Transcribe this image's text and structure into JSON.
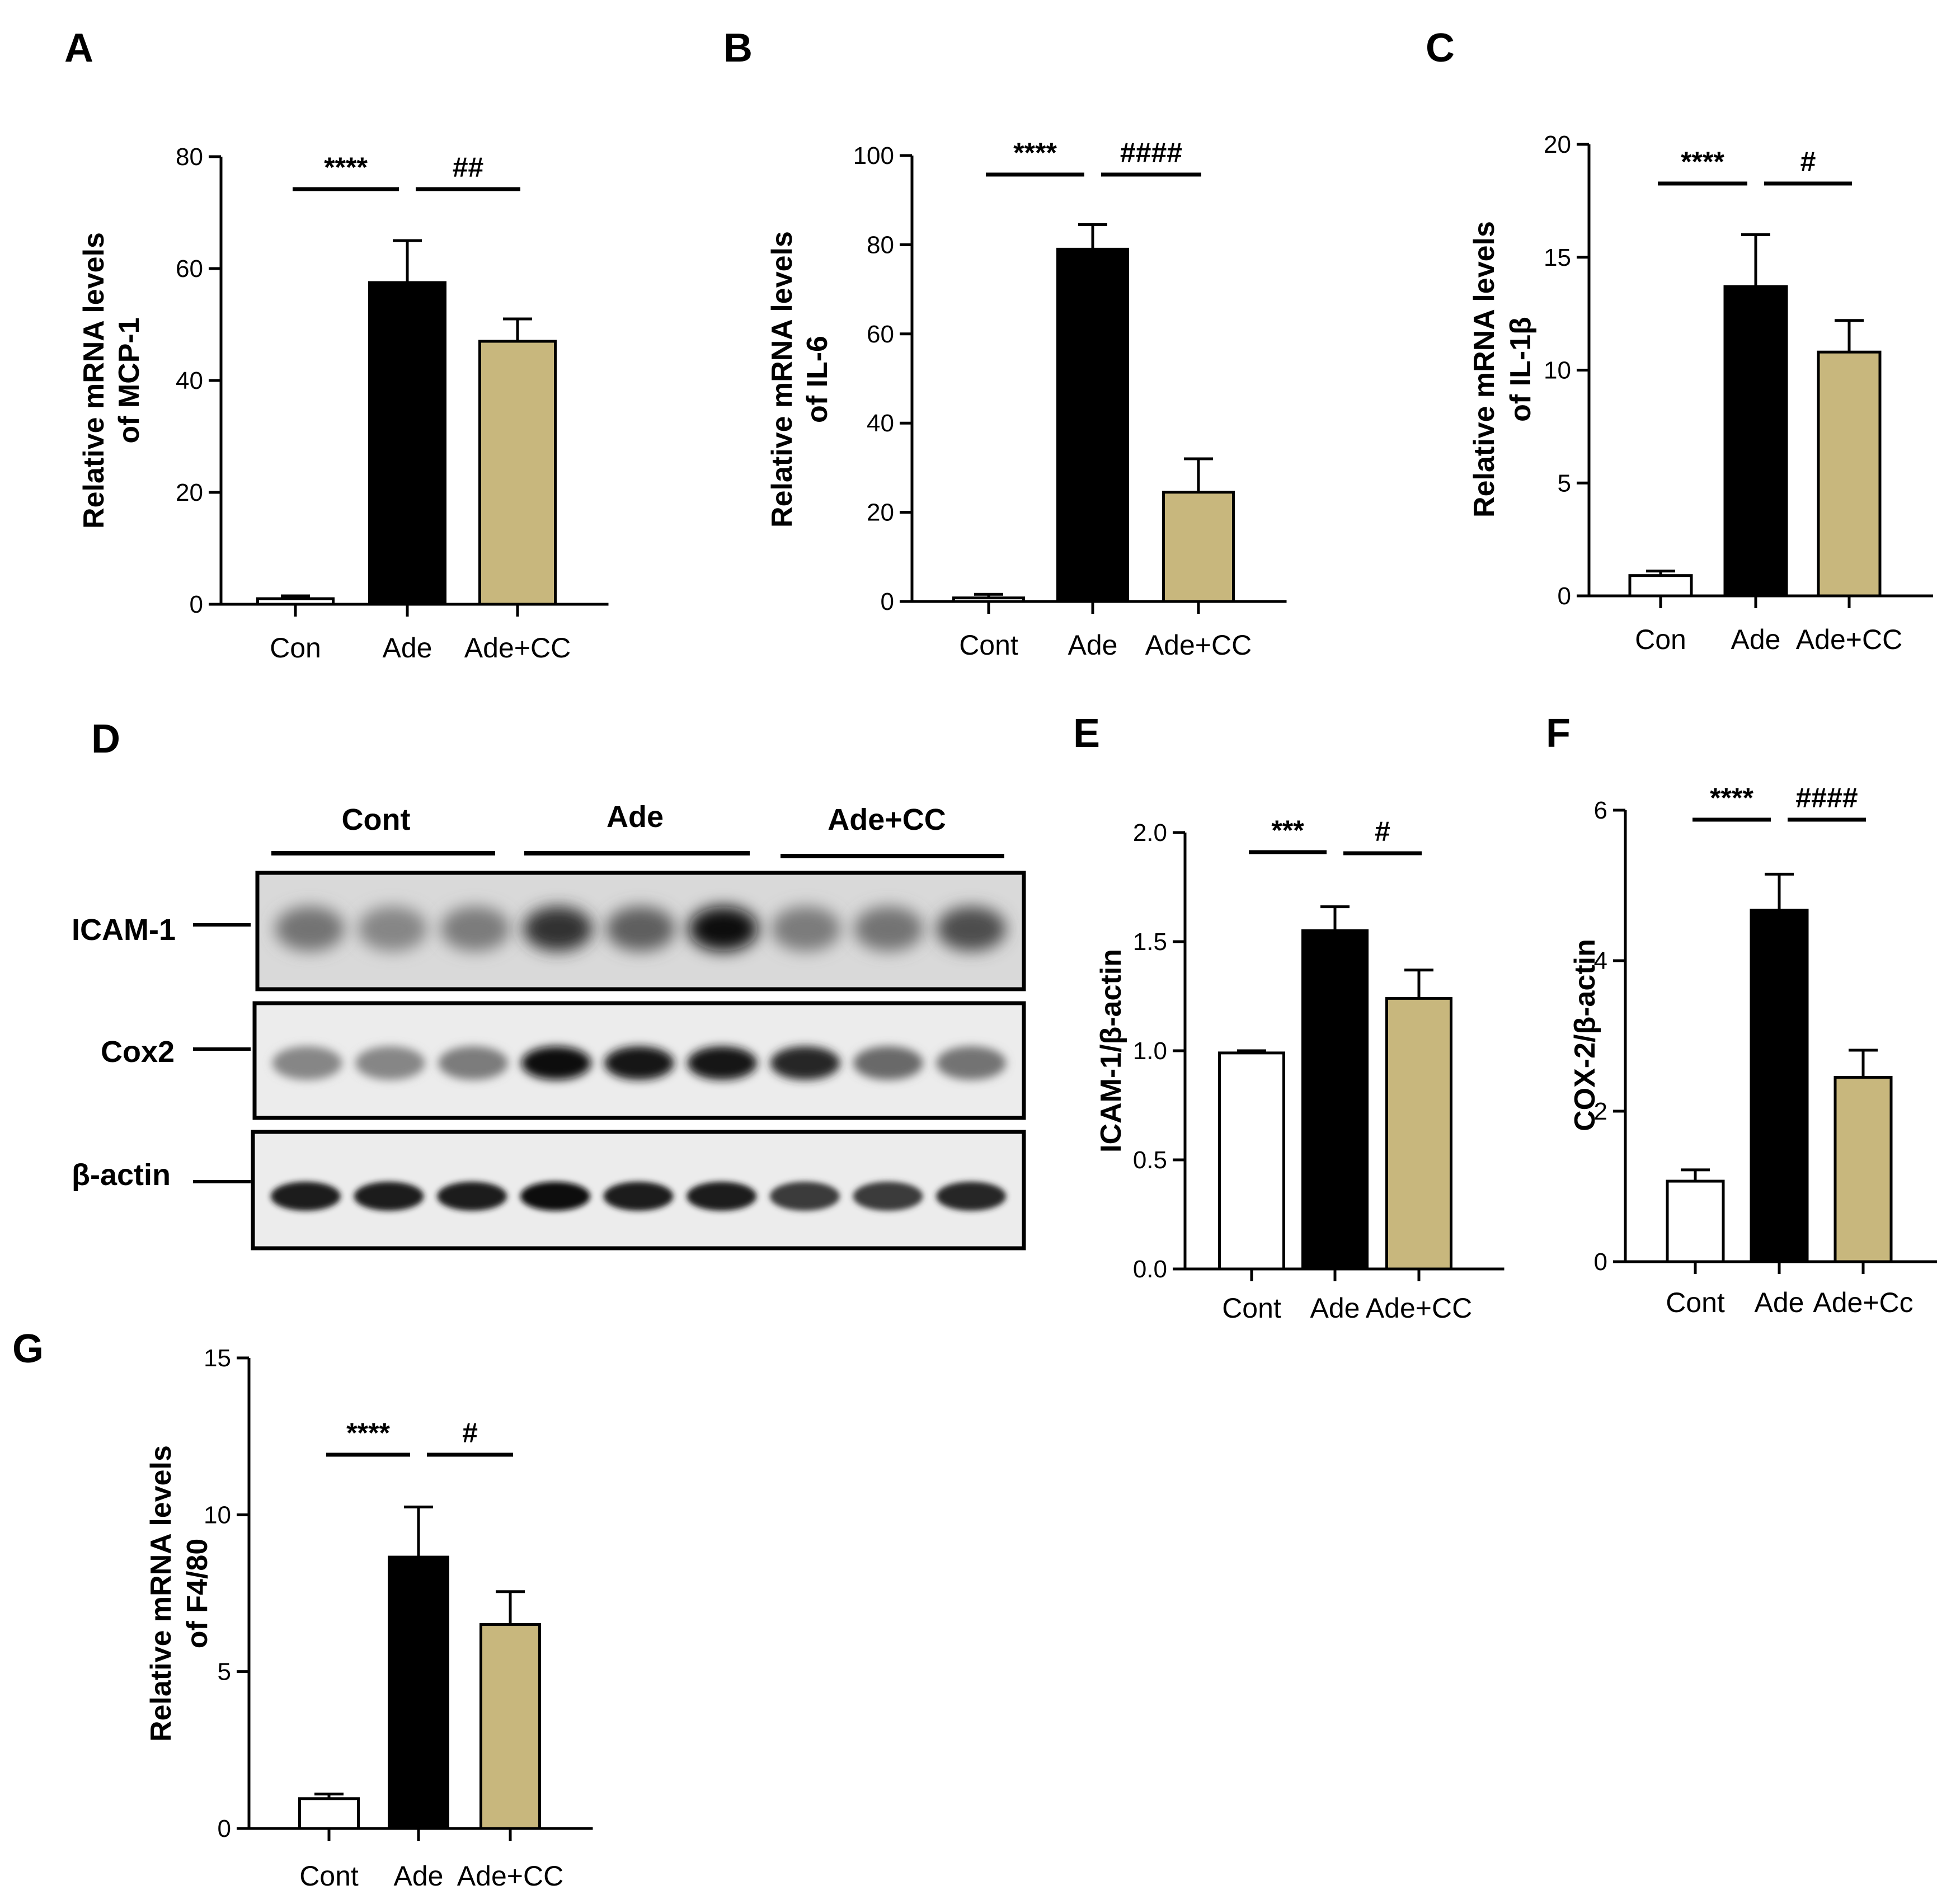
{
  "figure": {
    "panel_letters": [
      "A",
      "B",
      "C",
      "D",
      "E",
      "F",
      "G"
    ]
  },
  "colors": {
    "cont": "#ffffff",
    "ade": "#000000",
    "ade_cc": "#c8b77d",
    "axis": "#000000"
  },
  "chart_data": [
    {
      "id": "A",
      "type": "bar",
      "categories": [
        "Con",
        "Ade",
        "Ade+CC"
      ],
      "values": [
        1,
        57.5,
        47
      ],
      "errors": [
        0.5,
        7.5,
        4
      ],
      "ylabel": [
        "Relative mRNA levels",
        "of MCP-1"
      ],
      "ylim": [
        0,
        80
      ],
      "ticks": [
        0,
        20,
        40,
        60,
        80
      ],
      "significance": [
        {
          "from": 0,
          "to": 1,
          "label": "****"
        },
        {
          "from": 1,
          "to": 2,
          "label": "##"
        }
      ]
    },
    {
      "id": "B",
      "type": "bar",
      "categories": [
        "Cont",
        "Ade",
        "Ade+CC"
      ],
      "values": [
        0.8,
        79,
        24.5
      ],
      "errors": [
        0.8,
        5.5,
        7.5
      ],
      "ylabel": [
        "Relative mRNA levels",
        "of IL-6"
      ],
      "ylim": [
        0,
        100
      ],
      "ticks": [
        0,
        20,
        40,
        60,
        80,
        100
      ],
      "significance": [
        {
          "from": 0,
          "to": 1,
          "label": "****"
        },
        {
          "from": 1,
          "to": 2,
          "label": "####"
        }
      ]
    },
    {
      "id": "C",
      "type": "bar",
      "categories": [
        "Con",
        "Ade",
        "Ade+CC"
      ],
      "values": [
        0.9,
        13.7,
        10.8
      ],
      "errors": [
        0.2,
        2.3,
        1.4
      ],
      "ylabel": [
        "Relative mRNA levels",
        "of IL-1β"
      ],
      "ylim": [
        0,
        20
      ],
      "ticks": [
        0,
        5,
        10,
        15,
        20
      ],
      "significance": [
        {
          "from": 0,
          "to": 1,
          "label": "****"
        },
        {
          "from": 1,
          "to": 2,
          "label": "#"
        }
      ]
    },
    {
      "id": "E",
      "type": "bar",
      "categories": [
        "Cont",
        "Ade",
        "Ade+CC"
      ],
      "values": [
        0.99,
        1.55,
        1.24
      ],
      "errors": [
        0.01,
        0.11,
        0.13
      ],
      "ylabel": [
        "ICAM-1/β-actin"
      ],
      "ylim": [
        0,
        2
      ],
      "ticks": [
        0,
        0.5,
        1,
        1.5,
        2
      ],
      "tick_labels": [
        "0.0",
        "0.5",
        "1.0",
        "1.5",
        "2.0"
      ],
      "significance": [
        {
          "from": 0,
          "to": 1,
          "label": "***"
        },
        {
          "from": 1,
          "to": 2,
          "label": "#"
        }
      ]
    },
    {
      "id": "F",
      "type": "bar",
      "categories": [
        "Cont",
        "Ade",
        "Ade+Cc"
      ],
      "values": [
        1.07,
        4.67,
        2.45
      ],
      "errors": [
        0.15,
        0.48,
        0.36
      ],
      "ylabel": [
        "COX-2/β-actin"
      ],
      "ylim": [
        0,
        6
      ],
      "ticks": [
        0,
        2,
        4,
        6
      ],
      "significance": [
        {
          "from": 0,
          "to": 1,
          "label": "****"
        },
        {
          "from": 1,
          "to": 2,
          "label": "####"
        }
      ]
    },
    {
      "id": "G",
      "type": "bar",
      "categories": [
        "Cont",
        "Ade",
        "Ade+CC"
      ],
      "values": [
        0.95,
        8.65,
        6.5
      ],
      "errors": [
        0.15,
        1.6,
        1.05
      ],
      "ylabel": [
        "Relative mRNA levels",
        "of F4/80"
      ],
      "ylim": [
        0,
        15
      ],
      "ticks": [
        0,
        5,
        10,
        15
      ],
      "significance": [
        {
          "from": 0,
          "to": 1,
          "label": "****"
        },
        {
          "from": 1,
          "to": 2,
          "label": "#"
        }
      ]
    }
  ],
  "blot": {
    "groups": [
      "Cont",
      "Ade",
      "Ade+CC"
    ],
    "rows": [
      {
        "label": "ICAM-1",
        "intensities": [
          0.45,
          0.35,
          0.4,
          0.8,
          0.55,
          1.0,
          0.4,
          0.45,
          0.65
        ]
      },
      {
        "label": "Cox2",
        "intensities": [
          0.35,
          0.35,
          0.4,
          1.0,
          0.95,
          0.95,
          0.85,
          0.5,
          0.45
        ]
      },
      {
        "label": "β-actin",
        "intensities": [
          0.9,
          0.9,
          0.9,
          1.0,
          0.9,
          0.9,
          0.75,
          0.75,
          0.85
        ]
      }
    ]
  }
}
